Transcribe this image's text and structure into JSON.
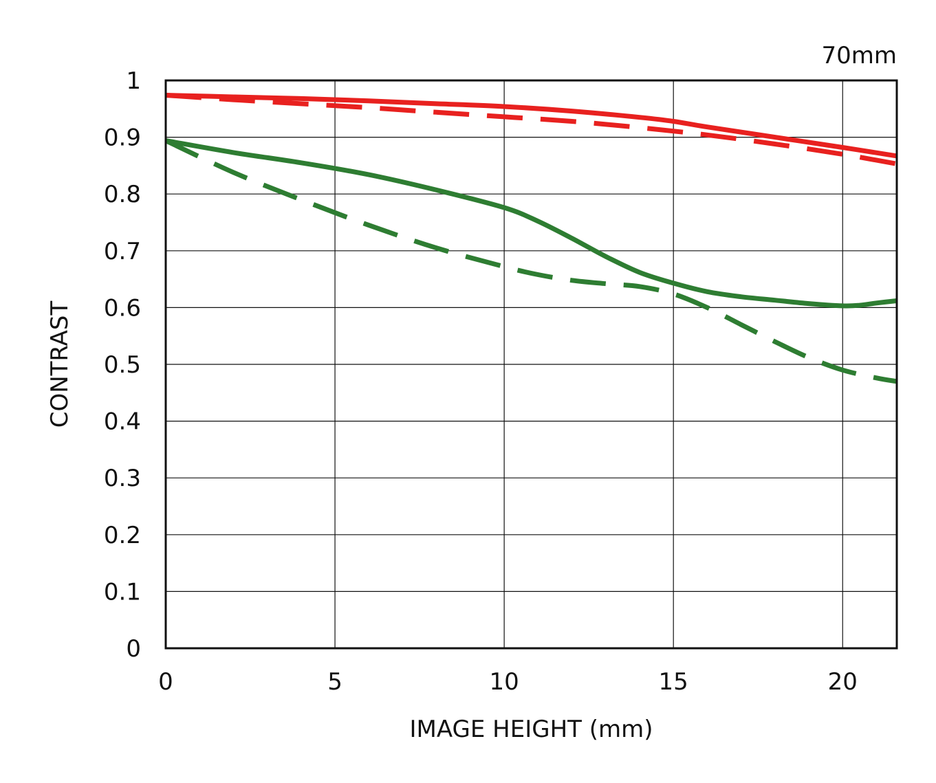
{
  "chart_data": {
    "type": "line",
    "xlabel": "IMAGE HEIGHT (mm)",
    "ylabel": "CONTRAST",
    "annotation": "70mm",
    "xlim": [
      0,
      21.6
    ],
    "ylim": [
      0,
      1
    ],
    "x_ticks": [
      {
        "value": 0,
        "label": "0"
      },
      {
        "value": 5,
        "label": "5"
      },
      {
        "value": 10,
        "label": "10"
      },
      {
        "value": 15,
        "label": "15"
      },
      {
        "value": 20,
        "label": "20"
      }
    ],
    "y_ticks": [
      {
        "value": 0,
        "label": "0"
      },
      {
        "value": 0.1,
        "label": "0.1"
      },
      {
        "value": 0.2,
        "label": "0.2"
      },
      {
        "value": 0.3,
        "label": "0.3"
      },
      {
        "value": 0.4,
        "label": "0.4"
      },
      {
        "value": 0.5,
        "label": "0.5"
      },
      {
        "value": 0.6,
        "label": "0.6"
      },
      {
        "value": 0.7,
        "label": "0.7"
      },
      {
        "value": 0.8,
        "label": "0.8"
      },
      {
        "value": 0.9,
        "label": "0.9"
      },
      {
        "value": 1,
        "label": "1"
      }
    ],
    "grid": true,
    "series": [
      {
        "color": "#e8211f",
        "style": "solid",
        "x": [
          0,
          2,
          4,
          6,
          8,
          10,
          12,
          14,
          15,
          16,
          18,
          20,
          21.6
        ],
        "y": [
          0.974,
          0.971,
          0.968,
          0.964,
          0.959,
          0.954,
          0.946,
          0.935,
          0.928,
          0.918,
          0.9,
          0.882,
          0.867
        ]
      },
      {
        "color": "#e8211f",
        "style": "dashed",
        "x": [
          0,
          2,
          4,
          6,
          8,
          10,
          12,
          14,
          16,
          18,
          20,
          21.6
        ],
        "y": [
          0.974,
          0.966,
          0.959,
          0.952,
          0.944,
          0.936,
          0.928,
          0.917,
          0.904,
          0.888,
          0.87,
          0.853
        ]
      },
      {
        "color": "#2e7d32",
        "style": "solid",
        "x": [
          0,
          2,
          4,
          6,
          8,
          10,
          11,
          12,
          13,
          14,
          15,
          16,
          17,
          18,
          19,
          20,
          20.5,
          21,
          21.6
        ],
        "y": [
          0.894,
          0.873,
          0.855,
          0.834,
          0.807,
          0.776,
          0.752,
          0.722,
          0.69,
          0.662,
          0.643,
          0.628,
          0.619,
          0.613,
          0.607,
          0.603,
          0.604,
          0.608,
          0.612
        ]
      },
      {
        "color": "#2e7d32",
        "style": "dashed",
        "x": [
          0,
          2,
          4,
          6,
          8,
          10,
          11,
          12,
          13,
          14,
          15,
          16,
          17,
          18,
          19,
          20,
          21,
          21.6
        ],
        "y": [
          0.894,
          0.838,
          0.79,
          0.745,
          0.705,
          0.672,
          0.658,
          0.648,
          0.642,
          0.637,
          0.624,
          0.6,
          0.57,
          0.54,
          0.512,
          0.49,
          0.476,
          0.47
        ]
      }
    ]
  }
}
